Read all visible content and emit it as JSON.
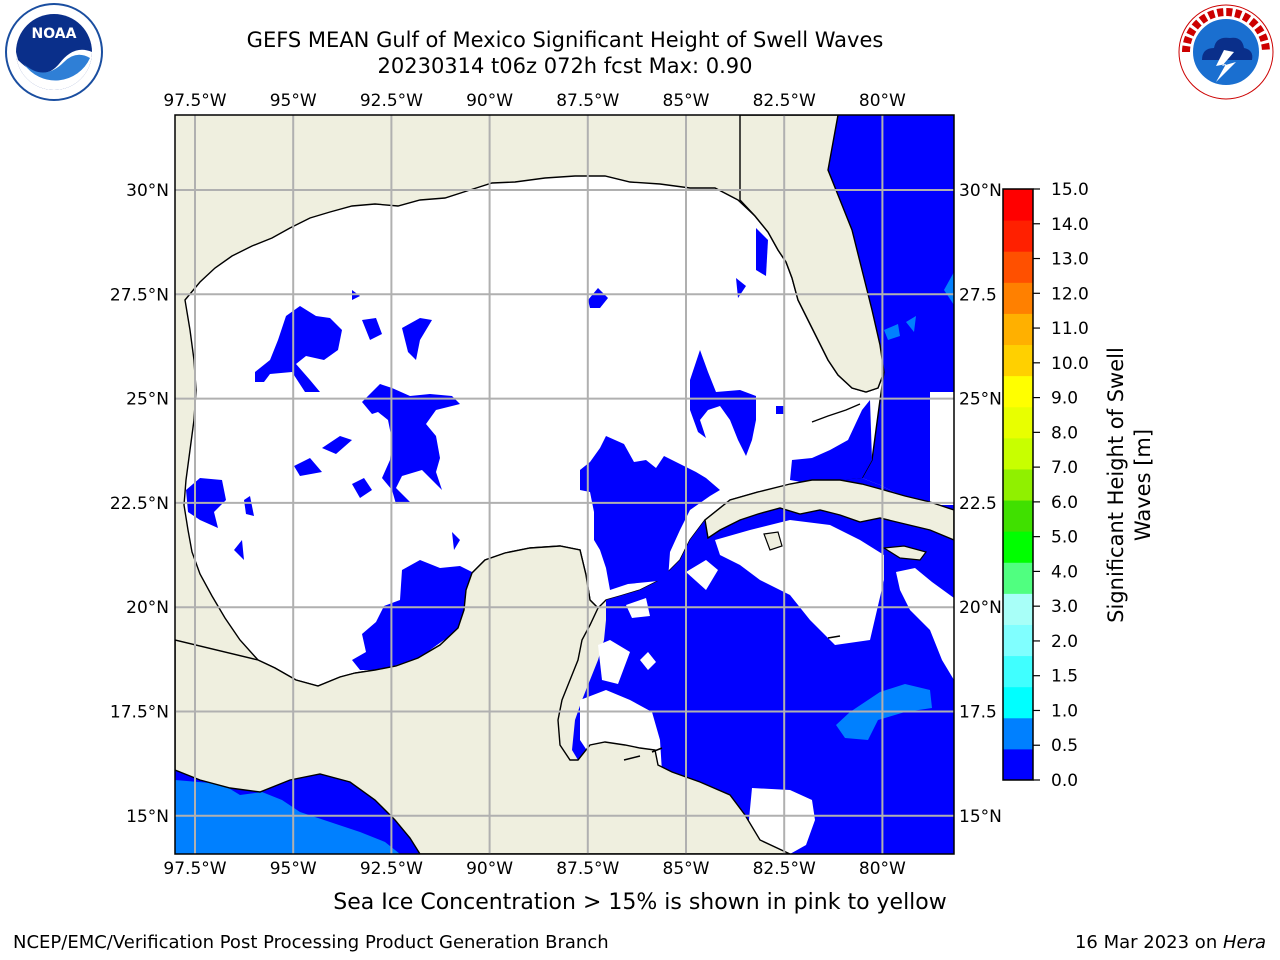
{
  "header": {
    "title_line1": "GEFS MEAN Gulf of Mexico Significant Height of Swell Waves",
    "title_line2": "20230314 t06z 072h fcst   Max: 0.90"
  },
  "logos": {
    "left": {
      "icon": "noaa-logo-icon",
      "text": "NOAA"
    },
    "right": {
      "icon": "national-weather-service-logo-icon"
    }
  },
  "map": {
    "lon_ticks": [
      "97.5°W",
      "95°W",
      "92.5°W",
      "90°W",
      "87.5°W",
      "85°W",
      "82.5°W",
      "80°W"
    ],
    "lat_ticks_left": [
      "30°N",
      "27.5°N",
      "25°N",
      "22.5°N",
      "20°N",
      "17.5°N",
      "15°N"
    ],
    "lat_ticks_right": [
      "30°N",
      "27.5",
      "25°N",
      "22.5",
      "20°N",
      "17.5",
      "15°N"
    ],
    "extent": {
      "lon": [
        -98,
        -78.2
      ],
      "lat": [
        14.1,
        31.8
      ]
    },
    "grid": true,
    "colors": {
      "land": "#efefdf",
      "ocean_zero": "#ffffff",
      "swell_low": "#0000ff",
      "swell_mid": "#0080ff"
    }
  },
  "colorbar": {
    "label": "Significant Height of Swell Waves [m]",
    "label_line1": "Significant Height of Swell",
    "label_line2": "Waves [m]",
    "ticks": [
      "15.0",
      "14.0",
      "13.0",
      "12.0",
      "11.0",
      "10.0",
      "9.0",
      "8.0",
      "7.0",
      "6.0",
      "5.0",
      "4.0",
      "3.0",
      "2.0",
      "1.5",
      "1.0",
      "0.5",
      "0.0"
    ],
    "colors": [
      "#0000ff",
      "#0080ff",
      "#00ffff",
      "#40ffff",
      "#80ffff",
      "#a8fff8",
      "#50ff80",
      "#00ff00",
      "#40e000",
      "#90f000",
      "#c8ff00",
      "#e8ff00",
      "#ffff00",
      "#ffd000",
      "#ffb000",
      "#ff8000",
      "#ff5000",
      "#ff2000",
      "#ff0000"
    ]
  },
  "footer": {
    "note": "Sea Ice Concentration > 15% is shown in pink to yellow",
    "credit_left": "NCEP/EMC/Verification Post Processing Product Generation Branch",
    "credit_right_prefix": "16 Mar 2023 on ",
    "credit_right_host": "Hera"
  }
}
